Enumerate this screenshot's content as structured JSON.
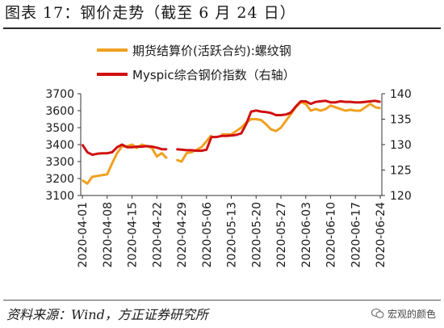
{
  "title": "图表 17：钢价走势（截至 6 月 24 日）",
  "source": "资料来源：Wind，方正证券研究所",
  "watermark": "宏观的颜色",
  "chart_data": {
    "type": "line",
    "x": [
      "2020-04-01",
      "2020-04-02",
      "2020-04-03",
      "2020-04-06",
      "2020-04-07",
      "2020-04-08",
      "2020-04-09",
      "2020-04-10",
      "2020-04-13",
      "2020-04-14",
      "2020-04-15",
      "2020-04-16",
      "2020-04-17",
      "2020-04-20",
      "2020-04-21",
      "2020-04-22",
      "2020-04-23",
      "2020-04-24",
      "2020-04-27",
      "2020-04-28",
      "2020-04-29",
      "2020-04-30",
      "2020-05-01",
      "2020-05-04",
      "2020-05-05",
      "2020-05-06",
      "2020-05-07",
      "2020-05-08",
      "2020-05-11",
      "2020-05-12",
      "2020-05-13",
      "2020-05-14",
      "2020-05-15",
      "2020-05-18",
      "2020-05-19",
      "2020-05-20",
      "2020-05-21",
      "2020-05-22",
      "2020-05-25",
      "2020-05-26",
      "2020-05-27",
      "2020-05-28",
      "2020-05-29",
      "2020-06-01",
      "2020-06-02",
      "2020-06-03",
      "2020-06-04",
      "2020-06-05",
      "2020-06-08",
      "2020-06-09",
      "2020-06-10",
      "2020-06-11",
      "2020-06-12",
      "2020-06-15",
      "2020-06-16",
      "2020-06-17",
      "2020-06-18",
      "2020-06-19",
      "2020-06-22",
      "2020-06-23",
      "2020-06-24"
    ],
    "xticks": [
      "2020-04-01",
      "2020-04-08",
      "2020-04-15",
      "2020-04-22",
      "2020-04-29",
      "2020-05-06",
      "2020-05-13",
      "2020-05-20",
      "2020-05-27",
      "2020-06-03",
      "2020-06-10",
      "2020-06-17",
      "2020-06-24"
    ],
    "series": [
      {
        "name": "期货结算价(活跃合约):螺纹钢",
        "axis": "left",
        "color": "#f0a020",
        "values": [
          3190,
          3170,
          3210,
          3215,
          3220,
          3225,
          3290,
          3350,
          3390,
          3390,
          3400,
          3380,
          3400,
          3390,
          3380,
          3330,
          3350,
          3320,
          null,
          3310,
          3300,
          3350,
          3355,
          3370,
          3385,
          3420,
          3455,
          null,
          3460,
          3460,
          3460,
          3480,
          3500,
          3530,
          3550,
          3550,
          3545,
          3520,
          3490,
          3480,
          3500,
          3540,
          3580,
          3620,
          3650,
          3640,
          3600,
          3610,
          3600,
          3610,
          3630,
          3620,
          3610,
          3600,
          3605,
          3600,
          3600,
          3620,
          3640,
          3620,
          3615
        ]
      },
      {
        "name": "Myspic综合钢价指数（右轴）",
        "axis": "right",
        "color": "#d01010",
        "values": [
          130.0,
          128.5,
          128.0,
          128.2,
          128.3,
          128.3,
          128.5,
          129.5,
          130.0,
          129.5,
          129.5,
          129.6,
          129.6,
          129.7,
          129.6,
          129.4,
          129.1,
          129.1,
          null,
          129.1,
          129.0,
          128.9,
          128.9,
          128.8,
          128.8,
          129.0,
          131.5,
          131.5,
          131.7,
          131.7,
          131.8,
          131.9,
          132.2,
          134.0,
          136.5,
          136.7,
          136.5,
          136.4,
          136.2,
          135.8,
          135.8,
          135.9,
          136.3,
          137.5,
          138.5,
          138.5,
          138.0,
          138.4,
          138.5,
          138.6,
          138.3,
          138.3,
          138.5,
          138.4,
          138.4,
          138.3,
          138.3,
          138.4,
          138.5,
          138.6,
          138.4
        ]
      }
    ],
    "left_axis": {
      "ticks": [
        3100,
        3200,
        3300,
        3400,
        3500,
        3600,
        3700
      ],
      "ylim": [
        3100,
        3700
      ]
    },
    "right_axis": {
      "ticks": [
        120,
        125,
        130,
        135,
        140
      ],
      "ylim": [
        120,
        140
      ]
    },
    "legend_position": "top-center",
    "grid": false
  }
}
